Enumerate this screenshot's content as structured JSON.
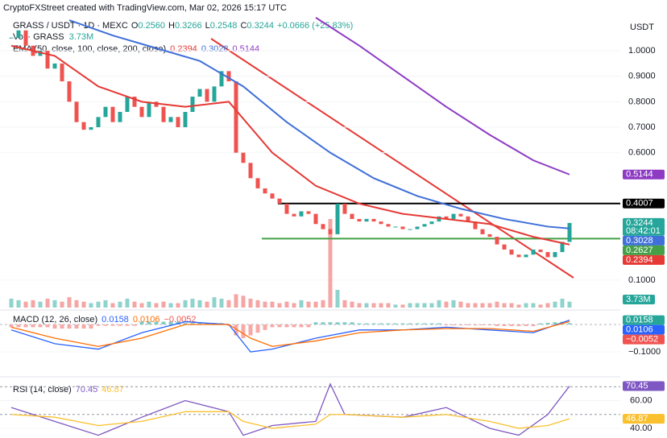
{
  "chart_data": {
    "type": "candlestick",
    "attribution": "CryptoFXStreet created with TradingView.com, Mar 02, 2026 15:17 UTC",
    "symbol": "GRASS / USDT · 1D · MEXC",
    "ohlc_header": {
      "open": "0.2560",
      "high": "0.3266",
      "low": "0.2548",
      "close": "0.3244",
      "change": "+0.0666 (+25.83%)"
    },
    "volume_header": {
      "title": "Vol · GRASS",
      "value": "3.73M"
    },
    "ema_header": {
      "title": "EMA (50, close, 100, close, 200, close)",
      "values": [
        "0.2394",
        "0.3028",
        "0.5144"
      ]
    },
    "currency": "USDT",
    "ylim": [
      0.046,
      1.136
    ],
    "yticks": [
      {
        "value": 1,
        "label": "1.0000"
      },
      {
        "value": 0.9,
        "label": "0.9000"
      },
      {
        "value": 0.8,
        "label": "0.8000"
      },
      {
        "value": 0.7,
        "label": "0.7000"
      },
      {
        "value": 0.6,
        "label": "0.6000"
      },
      {
        "value": 0.1,
        "label": "0.1000"
      }
    ],
    "up_color": "#26a69a",
    "down_color": "#ef5350",
    "close": [
      1.05,
      1.08,
      1.02,
      0.98,
      1.0,
      0.93,
      0.95,
      0.88,
      0.8,
      0.72,
      0.69,
      0.7,
      0.74,
      0.78,
      0.72,
      0.76,
      0.82,
      0.78,
      0.74,
      0.8,
      0.78,
      0.72,
      0.74,
      0.7,
      0.76,
      0.82,
      0.85,
      0.8,
      0.86,
      0.92,
      0.88,
      0.6,
      0.56,
      0.5,
      0.46,
      0.44,
      0.42,
      0.4,
      0.36,
      0.35,
      0.37,
      0.36,
      0.32,
      0.3,
      0.28,
      0.4,
      0.36,
      0.34,
      0.33,
      0.34,
      0.33,
      0.32,
      0.31,
      0.31,
      0.3,
      0.3,
      0.31,
      0.32,
      0.33,
      0.35,
      0.34,
      0.36,
      0.35,
      0.33,
      0.3,
      0.28,
      0.27,
      0.24,
      0.22,
      0.2,
      0.19,
      0.2,
      0.22,
      0.21,
      0.19,
      0.21,
      0.25,
      0.3244
    ],
    "volume": [
      6,
      5,
      4,
      5,
      4,
      6,
      5,
      4,
      7,
      5,
      4,
      3,
      4,
      5,
      3,
      4,
      6,
      4,
      3,
      4,
      3,
      4,
      3,
      3,
      5,
      6,
      5,
      4,
      7,
      6,
      5,
      9,
      8,
      6,
      5,
      4,
      4,
      3,
      4,
      3,
      5,
      4,
      4,
      5,
      60,
      12,
      5,
      4,
      3,
      3,
      3,
      3,
      3,
      2,
      2,
      3,
      3,
      3,
      3,
      5,
      4,
      5,
      4,
      3,
      3,
      3,
      3,
      4,
      3,
      3,
      2,
      3,
      3,
      2,
      3,
      4,
      6,
      4
    ],
    "volume_ylim": [
      0,
      60
    ],
    "volume_color_up": "#8fd3cc",
    "volume_color_down": "#f5a5a3",
    "ema": [
      {
        "color": "#e53935",
        "x": [
          0,
          6,
          12,
          18,
          24,
          30,
          36,
          42,
          48,
          54,
          60,
          66,
          72,
          77
        ],
        "values": [
          1.02,
          0.98,
          0.86,
          0.8,
          0.78,
          0.8,
          0.6,
          0.47,
          0.4,
          0.36,
          0.34,
          0.32,
          0.27,
          0.2394
        ]
      },
      {
        "color": "#3f6fd8",
        "x": [
          8,
          14,
          20,
          26,
          32,
          38,
          44,
          50,
          56,
          62,
          68,
          74,
          77
        ],
        "values": [
          1.12,
          1.06,
          1.01,
          0.96,
          0.86,
          0.72,
          0.6,
          0.5,
          0.43,
          0.38,
          0.34,
          0.31,
          0.3028
        ]
      },
      {
        "color": "#8e3bc4",
        "x": [
          42,
          48,
          54,
          60,
          66,
          72,
          77
        ],
        "values": [
          1.13,
          1.02,
          0.9,
          0.78,
          0.67,
          0.57,
          0.5144
        ]
      }
    ],
    "levels": [
      {
        "value": 0.4007,
        "color": "#000000"
      },
      {
        "value": 0.2627,
        "color": "#43a047"
      }
    ],
    "price_labels": [
      {
        "value": 0.5144,
        "color": "#8e3bc4"
      },
      {
        "value": 0.4007,
        "color": "#000000"
      },
      {
        "value": 0.3244,
        "color": "#26a69a",
        "timer": "08:42:01"
      },
      {
        "value": 0.3028,
        "color": "#3f6fd8"
      },
      {
        "value": 0.2627,
        "color": "#43a047"
      },
      {
        "value": 0.2394,
        "color": "#e53935"
      }
    ],
    "volume_label": "3.73M",
    "macd": {
      "title": "MACD (12, 26, close)",
      "header_values": [
        "0.0158",
        "0.0106",
        "−0.0052"
      ],
      "ylim": [
        -0.182,
        0.044
      ],
      "yticks": [
        {
          "value": -0.1,
          "label": "−0.1000"
        }
      ],
      "x": [
        0,
        6,
        12,
        18,
        24,
        30,
        33,
        36,
        42,
        48,
        54,
        60,
        66,
        72,
        77
      ],
      "macd": [
        -0.02,
        -0.07,
        -0.09,
        -0.03,
        0.01,
        0.0,
        -0.1,
        -0.09,
        -0.05,
        -0.02,
        -0.02,
        -0.01,
        -0.02,
        -0.03,
        0.0158
      ],
      "signal": [
        -0.01,
        -0.05,
        -0.08,
        -0.05,
        0.0,
        0.0,
        -0.05,
        -0.08,
        -0.06,
        -0.03,
        -0.02,
        -0.015,
        -0.015,
        -0.025,
        0.0106
      ],
      "macd_color": "#2962ff",
      "signal_color": "#ff6d00",
      "histogram": [
        -0.01,
        -0.01,
        -0.01,
        -0.01,
        -0.01,
        -0.01,
        -0.015,
        -0.015,
        -0.015,
        -0.015,
        -0.015,
        -0.015,
        -0.005,
        -0.005,
        -0.005,
        -0.005,
        -0.005,
        -0.005,
        0.01,
        0.01,
        0.01,
        0.01,
        0.01,
        0.01,
        0.005,
        0.005,
        0.005,
        0.005,
        0.005,
        0.005,
        -0.005,
        -0.04,
        -0.05,
        -0.04,
        -0.03,
        -0.02,
        -0.01,
        -0.01,
        -0.01,
        -0.01,
        -0.01,
        -0.01,
        0.008,
        0.008,
        0.008,
        0.008,
        0.008,
        0.008,
        0.004,
        0.004,
        0.004,
        0.004,
        0.004,
        0.004,
        0.004,
        0.004,
        0.004,
        0.004,
        0.004,
        0.004,
        -0.003,
        -0.003,
        -0.003,
        -0.003,
        -0.003,
        -0.003,
        -0.003,
        -0.006,
        -0.006,
        -0.006,
        -0.006,
        -0.006,
        -0.006,
        0.004,
        0.006,
        0.008,
        0.01,
        0.005
      ],
      "labels": [
        {
          "value": 0.0158,
          "color": "#26a69a"
        },
        {
          "value": 0.0106,
          "color": "#2962ff"
        },
        {
          "value": -0.0052,
          "label": "−0.0052",
          "color": "#ef5350"
        }
      ]
    },
    "rsi": {
      "title": "RSI (14, close)",
      "header_values": [
        "70.45",
        "46.87"
      ],
      "ylim": [
        33,
        76
      ],
      "yticks": [
        {
          "value": 60,
          "label": "60.00"
        },
        {
          "value": 40,
          "label": "40.00"
        }
      ],
      "levels": [
        70,
        50
      ],
      "x": [
        0,
        6,
        12,
        18,
        24,
        30,
        32,
        36,
        42,
        44,
        46,
        54,
        60,
        66,
        70,
        74,
        77
      ],
      "rsi": [
        55,
        45,
        35,
        48,
        60,
        52,
        35,
        42,
        45,
        72,
        50,
        48,
        55,
        40,
        35,
        50,
        70.45
      ],
      "signal": [
        50,
        48,
        42,
        45,
        52,
        52,
        45,
        40,
        43,
        50,
        50,
        48,
        50,
        45,
        40,
        42,
        46.87
      ],
      "rsi_color": "#7e57c2",
      "signal_color": "#fbc02d",
      "labels": [
        {
          "value": 70.45,
          "color": "#7e57c2"
        },
        {
          "value": 46.87,
          "color": "#fbc02d"
        }
      ]
    }
  }
}
